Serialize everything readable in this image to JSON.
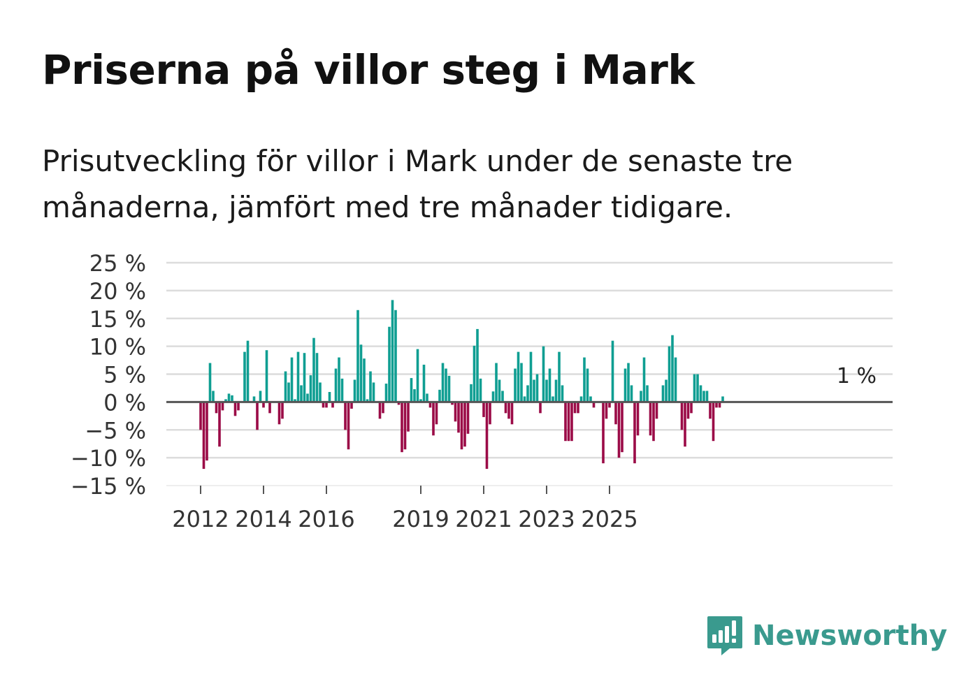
{
  "title": "Priserna på villor steg i Mark",
  "subtitle": "Prisutveckling för villor i Mark under de senaste tre månaderna, jämfört med tre månader tidigare.",
  "brand": {
    "name": "Newsworthy",
    "icon": "newsworthy-logo-icon",
    "color": "#3a9a8e"
  },
  "colors": {
    "positive": "#0f9e92",
    "negative": "#9b0b47",
    "grid": "#dcdcdc",
    "zero": "#555555"
  },
  "chart_data": {
    "type": "bar",
    "title": "Priserna på villor steg i Mark",
    "xlabel": "",
    "ylabel": "",
    "ylim": [
      -15,
      25
    ],
    "y_ticks": [
      {
        "value": 25,
        "label": "25 %"
      },
      {
        "value": 20,
        "label": "20 %"
      },
      {
        "value": 15,
        "label": "15 %"
      },
      {
        "value": 10,
        "label": "10 %"
      },
      {
        "value": 5,
        "label": "5 %"
      },
      {
        "value": 0,
        "label": "0 %"
      },
      {
        "value": -5,
        "label": "−5 %"
      },
      {
        "value": -10,
        "label": "−10 %"
      },
      {
        "value": -15,
        "label": "−15 %"
      }
    ],
    "x_ticks": [
      {
        "index": 0,
        "label": "2012"
      },
      {
        "index": 20,
        "label": "2014"
      },
      {
        "index": 40,
        "label": "2016"
      },
      {
        "index": 70,
        "label": "2019"
      },
      {
        "index": 90,
        "label": "2021"
      },
      {
        "index": 110,
        "label": "2023"
      },
      {
        "index": 130,
        "label": "2025"
      }
    ],
    "series": [
      {
        "name": "Prisutveckling",
        "values": [
          -5,
          -12,
          -10.5,
          7,
          2,
          -2,
          -8,
          -1.5,
          0.5,
          1.5,
          1.2,
          -2.5,
          -1.5,
          0,
          9,
          11,
          0,
          1,
          -5,
          2,
          -1,
          9.3,
          -2,
          0,
          0,
          -4,
          -3,
          5.5,
          3.5,
          8,
          0.5,
          9,
          3,
          8.8,
          1.5,
          4.8,
          11.5,
          8.8,
          3.5,
          -1,
          -1,
          1.8,
          -1,
          6,
          8,
          4.2,
          -5,
          -8.5,
          -1.2,
          4,
          16.5,
          10.3,
          7.8,
          0.5,
          5.5,
          3.5,
          0,
          -3,
          -2,
          3.3,
          13.5,
          18.3,
          16.5,
          -0.5,
          -9,
          -8.5,
          -5.3,
          4.3,
          2.3,
          9.5,
          0.5,
          6.7,
          1.5,
          -1,
          -6,
          -4,
          2.2,
          7,
          6,
          4.7,
          -0.5,
          -3.5,
          -5.5,
          -8.5,
          -8,
          -5.7,
          3.2,
          10.1,
          13.1,
          4.2,
          -2.7,
          -12,
          -4,
          1.9,
          7,
          4,
          2,
          -2,
          -3,
          -4,
          6,
          9,
          7,
          1,
          3,
          9,
          4,
          5,
          -2,
          10,
          4,
          6,
          1,
          4,
          9,
          3,
          -7,
          -7,
          -7,
          -2,
          -2,
          1,
          8,
          6,
          1,
          -1,
          0,
          0,
          -11,
          -3,
          -1,
          11,
          -4,
          -10,
          -9,
          6,
          7,
          3,
          -11,
          -6,
          2,
          8,
          3,
          -6,
          -7,
          -3,
          0,
          3,
          4,
          10,
          12,
          8,
          0,
          -5,
          -8,
          -3,
          -2,
          5,
          5,
          3,
          2,
          2,
          -3,
          -7,
          -1,
          -1,
          1
        ]
      }
    ],
    "end_label": "1 %"
  }
}
